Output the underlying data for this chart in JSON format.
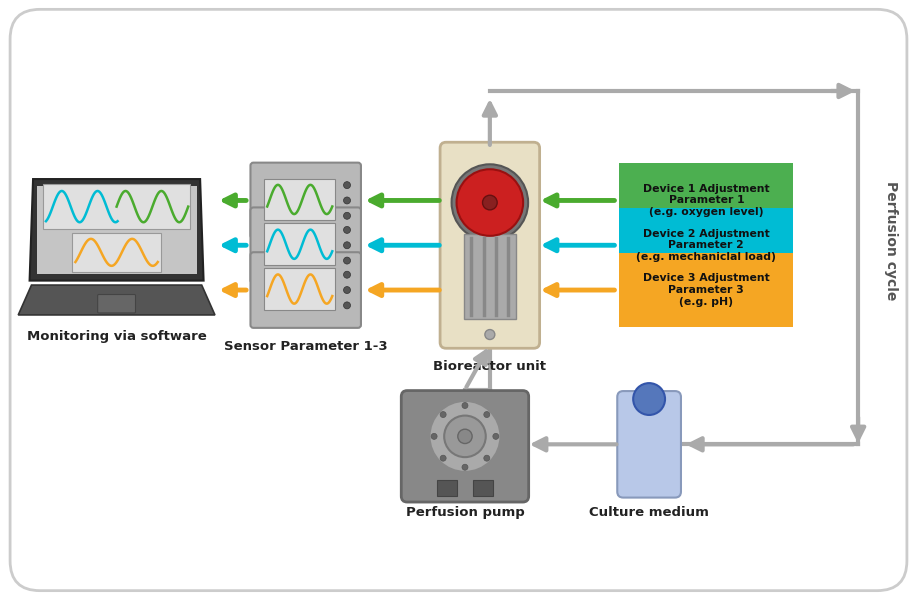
{
  "bg_color": "#ffffff",
  "border_color": "#cccccc",
  "arrow_green": "#4aab2e",
  "arrow_cyan": "#00bcd4",
  "arrow_orange": "#f5a623",
  "arrow_gray": "#aaaaaa",
  "box1_color": "#4caf50",
  "box2_color": "#00bcd4",
  "box3_color": "#f5a623",
  "box1_text": "Device 1 Adjustment\nParameter 1\n(e.g. oxygen level)",
  "box2_text": "Device 2 Adjustment\nParameter 2\n(e.g. mechaniclal load)",
  "box3_text": "Device 3 Adjustment\nParameter 3\n(e.g. pH)",
  "label_monitoring": "Monitoring via software",
  "label_sensor": "Sensor Parameter 1-3",
  "label_bioreactor": "Bioreactor unit",
  "label_pump": "Perfusion pump",
  "label_medium": "Culture medium",
  "label_perfusion": "Perfusion cycle",
  "wave_green": "#4aab2e",
  "wave_cyan": "#00bcd4",
  "wave_orange": "#f5a623"
}
